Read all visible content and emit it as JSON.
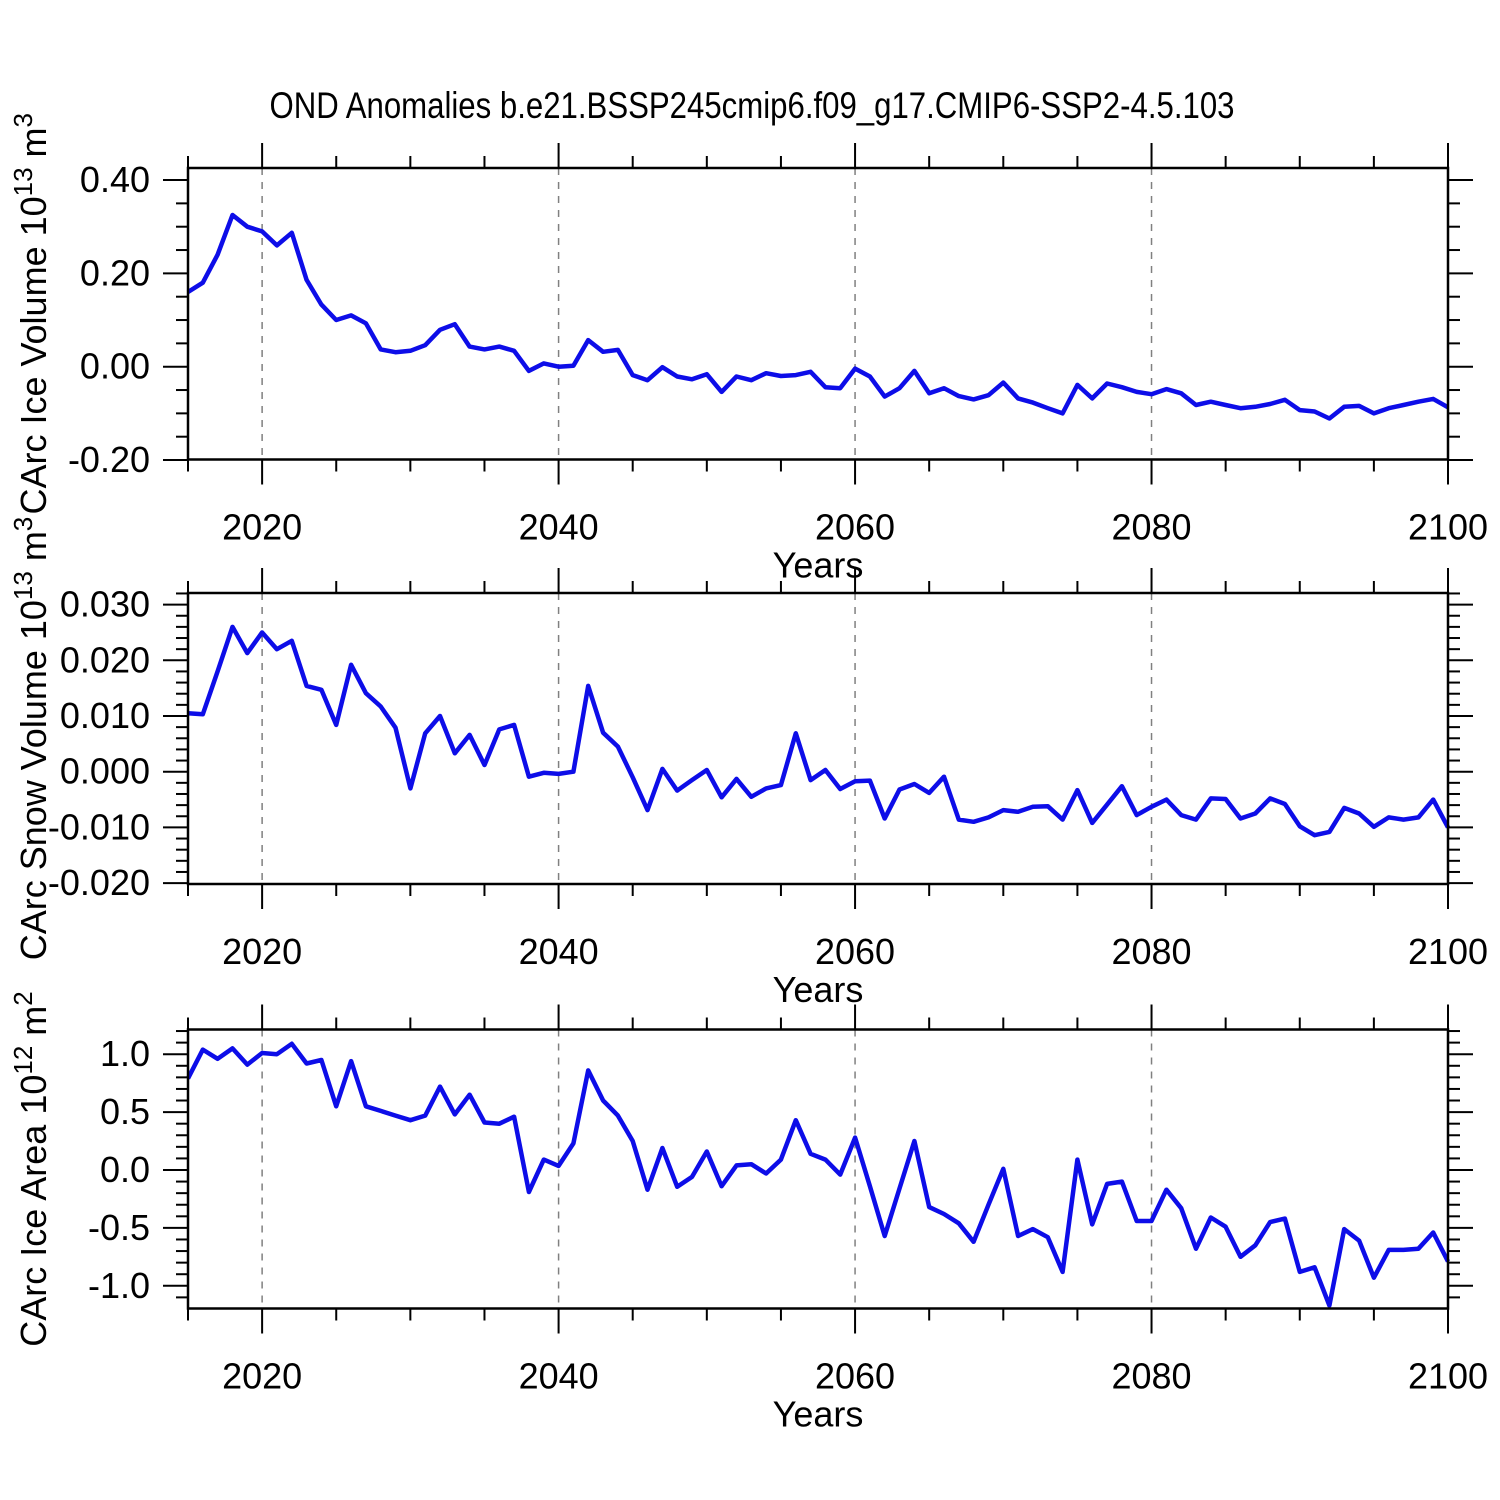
{
  "title": "OND Anomalies b.e21.BSSP245cmip6.f09_g17.CMIP6-SSP2-4.5.103",
  "x_axis": {
    "label": "Years",
    "range": [
      2015,
      2100
    ],
    "major_ticks": [
      2020,
      2040,
      2060,
      2080,
      2100
    ],
    "minor_step": 5,
    "grid_years": [
      2020,
      2040,
      2060,
      2080
    ]
  },
  "colors": {
    "line": "#0d0de8",
    "grid": "#808080",
    "axis": "#000000",
    "background": "#ffffff",
    "text": "#000000"
  },
  "panels": [
    {
      "id": "ice-volume",
      "ylabel_text": "CArc Ice Volume 10^13 m^3",
      "ylabel_parts": [
        {
          "t": "CArc Ice Volume 10"
        },
        {
          "t": "13",
          "sup": true
        },
        {
          "t": " m"
        },
        {
          "t": "3",
          "sup": true
        }
      ],
      "yticks": [
        {
          "v": 0.4,
          "label": "0.40"
        },
        {
          "v": 0.2,
          "label": "0.20"
        },
        {
          "v": 0.0,
          "label": "0.00"
        },
        {
          "v": -0.2,
          "label": "-0.20"
        }
      ],
      "yminor_step": 0.05
    },
    {
      "id": "snow-volume",
      "ylabel_text": "CArc Snow Volume 10^13 m^3",
      "ylabel_parts": [
        {
          "t": "CArc Snow Volume 10"
        },
        {
          "t": "13",
          "sup": true
        },
        {
          "t": " m"
        },
        {
          "t": "3",
          "sup": true
        }
      ],
      "yticks": [
        {
          "v": 0.03,
          "label": "0.030"
        },
        {
          "v": 0.02,
          "label": "0.020"
        },
        {
          "v": 0.01,
          "label": "0.010"
        },
        {
          "v": 0.0,
          "label": "0.000"
        },
        {
          "v": -0.01,
          "label": "-0.010"
        },
        {
          "v": -0.02,
          "label": "-0.020"
        }
      ],
      "yminor_step": 0.002
    },
    {
      "id": "ice-area",
      "ylabel_text": "CArc Ice Area 10^12 m^2",
      "ylabel_parts": [
        {
          "t": "CArc Ice Area 10"
        },
        {
          "t": "12",
          "sup": true
        },
        {
          "t": " m"
        },
        {
          "t": "2",
          "sup": true
        }
      ],
      "yticks": [
        {
          "v": 1.0,
          "label": "1.0"
        },
        {
          "v": 0.5,
          "label": "0.5"
        },
        {
          "v": 0.0,
          "label": "0.0"
        },
        {
          "v": -0.5,
          "label": "-0.5"
        },
        {
          "v": -1.0,
          "label": "-1.0"
        }
      ],
      "yminor_step": 0.1
    }
  ],
  "chart_data": [
    {
      "type": "line",
      "name": "CArc Ice Volume (10^13 m^3)",
      "xlabel": "Years",
      "x_start": 2015,
      "x_end": 2100,
      "x_step": 1,
      "ylim": [
        -0.199,
        0.426
      ],
      "legend": "none",
      "grid": "vertical-dashed",
      "values": [
        0.16,
        0.18,
        0.24,
        0.325,
        0.3,
        0.29,
        0.26,
        0.287,
        0.186,
        0.133,
        0.1,
        0.11,
        0.093,
        0.037,
        0.031,
        0.034,
        0.046,
        0.079,
        0.091,
        0.043,
        0.037,
        0.043,
        0.034,
        -0.009,
        0.007,
        0.0,
        0.002,
        0.057,
        0.032,
        0.036,
        -0.018,
        -0.029,
        -0.001,
        -0.021,
        -0.027,
        -0.016,
        -0.054,
        -0.021,
        -0.029,
        -0.014,
        -0.02,
        -0.018,
        -0.011,
        -0.044,
        -0.046,
        -0.004,
        -0.021,
        -0.064,
        -0.046,
        -0.009,
        -0.057,
        -0.046,
        -0.063,
        -0.07,
        -0.061,
        -0.034,
        -0.068,
        -0.077,
        -0.089,
        -0.1,
        -0.039,
        -0.068,
        -0.036,
        -0.044,
        -0.054,
        -0.059,
        -0.048,
        -0.057,
        -0.082,
        -0.075,
        -0.082,
        -0.089,
        -0.086,
        -0.08,
        -0.071,
        -0.093,
        -0.096,
        -0.111,
        -0.086,
        -0.084,
        -0.1,
        -0.089,
        -0.082,
        -0.075,
        -0.069,
        -0.087
      ]
    },
    {
      "type": "line",
      "name": "CArc Snow Volume (10^13 m^3)",
      "xlabel": "Years",
      "x_start": 2015,
      "x_end": 2100,
      "x_step": 1,
      "ylim": [
        -0.0202,
        0.0321
      ],
      "legend": "none",
      "grid": "vertical-dashed",
      "values": [
        0.0105,
        0.0103,
        0.018,
        0.026,
        0.0213,
        0.025,
        0.022,
        0.0235,
        0.0154,
        0.0147,
        0.0084,
        0.0192,
        0.0141,
        0.0117,
        0.0079,
        -0.003,
        0.0069,
        0.01,
        0.0033,
        0.0066,
        0.0012,
        0.0076,
        0.0084,
        -0.0009,
        -0.0002,
        -0.0004,
        0.0,
        0.0154,
        0.007,
        0.0045,
        -0.001,
        -0.0069,
        0.0005,
        -0.0034,
        -0.0015,
        0.0003,
        -0.0046,
        -0.0013,
        -0.0045,
        -0.003,
        -0.0024,
        0.0069,
        -0.0015,
        0.0003,
        -0.0031,
        -0.0017,
        -0.0016,
        -0.0084,
        -0.0032,
        -0.0022,
        -0.0038,
        -0.0009,
        -0.0086,
        -0.009,
        -0.0082,
        -0.0069,
        -0.0072,
        -0.0063,
        -0.0062,
        -0.0086,
        -0.0033,
        -0.0092,
        -0.0059,
        -0.0026,
        -0.0078,
        -0.0063,
        -0.005,
        -0.0078,
        -0.0086,
        -0.0048,
        -0.0049,
        -0.0084,
        -0.0075,
        -0.0048,
        -0.0058,
        -0.0098,
        -0.0114,
        -0.0108,
        -0.0065,
        -0.0075,
        -0.0099,
        -0.0082,
        -0.0086,
        -0.0082,
        -0.005,
        -0.01
      ]
    },
    {
      "type": "line",
      "name": "CArc Ice Area (10^12 m^2)",
      "xlabel": "Years",
      "x_start": 2015,
      "x_end": 2100,
      "x_step": 1,
      "ylim": [
        -1.21,
        1.21
      ],
      "legend": "none",
      "grid": "vertical-dashed",
      "values": [
        0.79,
        1.04,
        0.96,
        1.05,
        0.91,
        1.01,
        1.0,
        1.09,
        0.92,
        0.95,
        0.55,
        0.94,
        0.55,
        0.51,
        0.47,
        0.43,
        0.47,
        0.72,
        0.48,
        0.65,
        0.41,
        0.4,
        0.46,
        -0.19,
        0.09,
        0.035,
        0.23,
        0.86,
        0.6,
        0.47,
        0.25,
        -0.17,
        0.19,
        -0.145,
        -0.06,
        0.16,
        -0.14,
        0.04,
        0.05,
        -0.03,
        0.09,
        0.43,
        0.14,
        0.09,
        -0.04,
        0.28,
        -0.14,
        -0.57,
        -0.16,
        0.25,
        -0.32,
        -0.38,
        -0.46,
        -0.62,
        -0.3,
        0.01,
        -0.57,
        -0.51,
        -0.58,
        -0.88,
        0.09,
        -0.47,
        -0.12,
        -0.1,
        -0.44,
        -0.44,
        -0.17,
        -0.33,
        -0.68,
        -0.41,
        -0.49,
        -0.75,
        -0.65,
        -0.45,
        -0.42,
        -0.88,
        -0.84,
        -1.17,
        -0.51,
        -0.61,
        -0.93,
        -0.69,
        -0.69,
        -0.68,
        -0.54,
        -0.79
      ]
    }
  ]
}
